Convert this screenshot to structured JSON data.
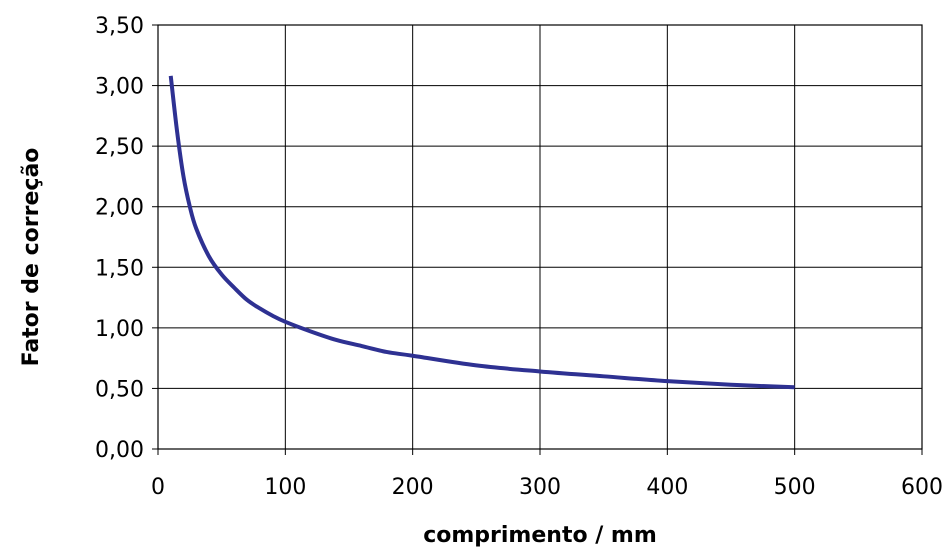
{
  "chart_data": {
    "type": "line",
    "title": "",
    "xlabel": "comprimento / mm",
    "ylabel": "Fator de correção",
    "xlim": [
      0,
      600
    ],
    "ylim": [
      0,
      3.5
    ],
    "x_ticks": [
      "0",
      "100",
      "200",
      "300",
      "400",
      "500",
      "600"
    ],
    "y_ticks": [
      "0,00",
      "0,50",
      "1,00",
      "1,50",
      "2,00",
      "2,50",
      "3,00",
      "3,50"
    ],
    "grid": true,
    "legend": "none",
    "series": [
      {
        "color": "#2E3192",
        "x": [
          10,
          15,
          20,
          25,
          30,
          40,
          50,
          60,
          70,
          80,
          90,
          100,
          120,
          140,
          160,
          180,
          200,
          250,
          300,
          350,
          400,
          450,
          500
        ],
        "y": [
          3.08,
          2.62,
          2.25,
          2.0,
          1.82,
          1.59,
          1.44,
          1.33,
          1.23,
          1.16,
          1.1,
          1.05,
          0.97,
          0.9,
          0.85,
          0.8,
          0.77,
          0.69,
          0.64,
          0.6,
          0.56,
          0.53,
          0.51
        ]
      }
    ]
  }
}
